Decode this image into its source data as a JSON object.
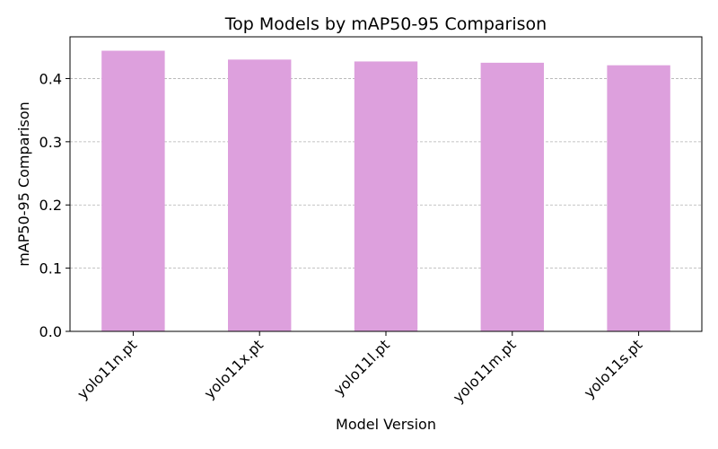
{
  "chart_data": {
    "type": "bar",
    "title": "Top Models by mAP50-95 Comparison",
    "xlabel": "Model Version",
    "ylabel": "mAP50-95 Comparison",
    "categories": [
      "yolo11n.pt",
      "yolo11x.pt",
      "yolo11l.pt",
      "yolo11m.pt",
      "yolo11s.pt"
    ],
    "values": [
      0.444,
      0.43,
      0.427,
      0.425,
      0.421
    ],
    "ylim": [
      0,
      0.466
    ],
    "yticks": [
      0.0,
      0.1,
      0.2,
      0.3,
      0.4
    ],
    "ytick_labels": [
      "0.0",
      "0.1",
      "0.2",
      "0.3",
      "0.4"
    ],
    "grid": "y-dashed",
    "bar_color": "#dda0dd"
  }
}
